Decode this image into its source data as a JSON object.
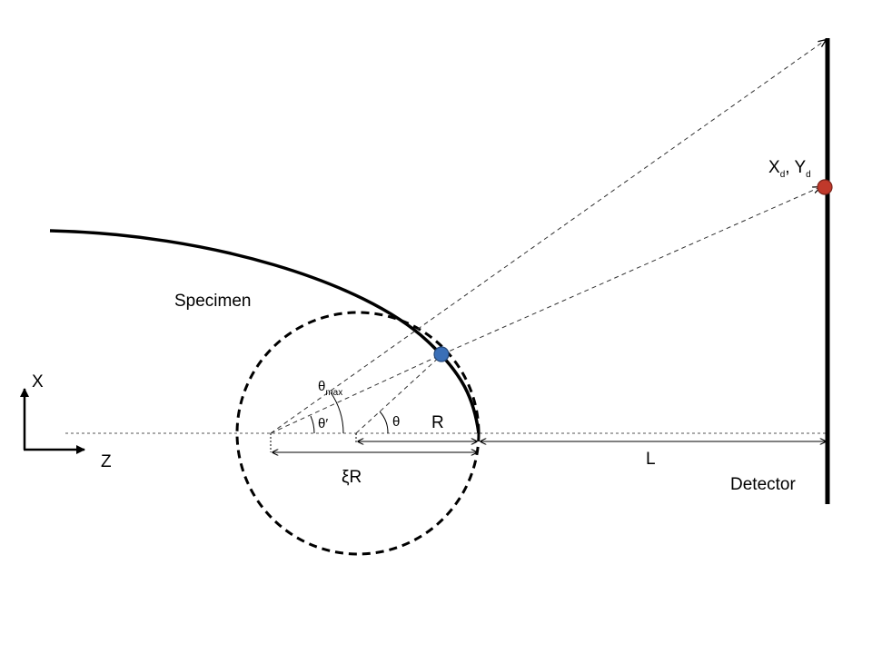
{
  "colors": {
    "ink": "#000000",
    "dashed_gray": "#555555",
    "emission_point": "#3a6fb7",
    "emission_point_outline": "#24487a",
    "detector_point": "#c0392b",
    "detector_point_outline": "#7a231a"
  },
  "labels": {
    "specimen": "Specimen",
    "detector": "Detector",
    "axis_x": "X",
    "axis_z": "Z",
    "theta_max_main": "θ",
    "theta_max_sub": "max",
    "theta_prime": "θ′",
    "theta": "θ",
    "radius": "R",
    "xi_r": "ξR",
    "distance_l": "L",
    "det_x_main": "X",
    "det_x_sub": "d",
    "det_sep": ", ",
    "det_y_main": "Y",
    "det_y_sub": "d"
  }
}
